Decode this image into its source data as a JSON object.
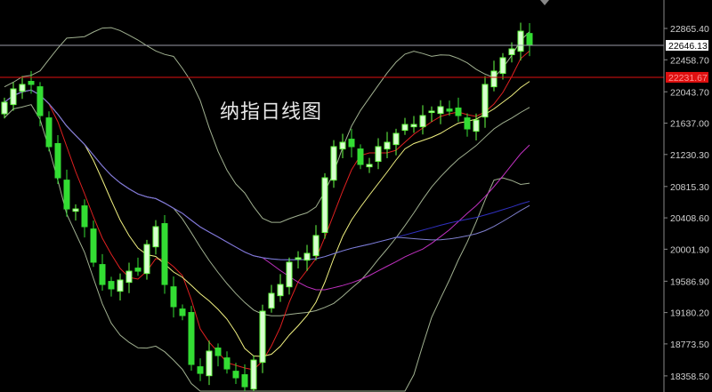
{
  "chart_data": {
    "type": "candlestick",
    "title": "纳指日线图",
    "y_ticks": [
      "22865.40",
      "22458.70",
      "22043.70",
      "21637.00",
      "21230.30",
      "20815.30",
      "20408.60",
      "20001.90",
      "19586.90",
      "19180.20",
      "18773.50",
      "18358.50"
    ],
    "ylim": [
      18260,
      23000
    ],
    "grid": false,
    "current_price": {
      "label": "22646.13",
      "value": 22646.13,
      "line_color": "#9a9aa6"
    },
    "marked_level": {
      "label": "22231.67",
      "value": 22231.67,
      "color": "#e01010"
    },
    "candle_colors": {
      "up_fill": "#d8ffd0",
      "up_stroke": "#66ff44",
      "down_fill": "#33dd33"
    },
    "closes": [
      21908,
      22081,
      22139,
      22139,
      21735,
      21332,
      20928,
      20524,
      20524,
      20294,
      19833,
      19544,
      19487,
      19602,
      19717,
      19717,
      20063,
      20294,
      19544,
      19256,
      19141,
      18507,
      18391,
      18680,
      18622,
      18449,
      18334,
      18218,
      18564,
      19198,
      19429,
      19544,
      19833,
      19890,
      19948,
      20179,
      20928,
      21332,
      21389,
      21332,
      21101,
      21101,
      21332,
      21389,
      21504,
      21620,
      21620,
      21735,
      21793,
      21850,
      21793,
      21735,
      21562,
      21677,
      22139,
      22312,
      22485,
      22600,
      22830,
      22646.13
    ],
    "indicators": [
      {
        "type": "ma",
        "period": 5,
        "color": "#e02020"
      },
      {
        "type": "ma",
        "period": 10,
        "color": "#f0f080"
      },
      {
        "type": "ma",
        "period": 30,
        "color": "#c030c0"
      },
      {
        "type": "ma",
        "period": 60,
        "color": "#3030c0"
      },
      {
        "type": "ma",
        "period": 45,
        "color": "#8080d0"
      },
      {
        "type": "bollinger",
        "period": 20,
        "color": "#a0b090"
      }
    ]
  }
}
